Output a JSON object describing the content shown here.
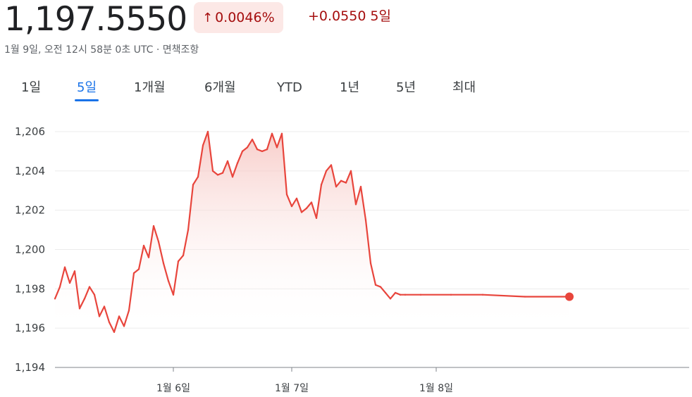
{
  "quote": {
    "price": "1,197.5550",
    "percent_change": "0.0046%",
    "absolute_change": "+0.0550",
    "period": "5일",
    "timestamp_line": "1월 9일, 오전 12시 58분 0초 UTC · 면책조항"
  },
  "tabs": [
    {
      "label": "1일",
      "active": false
    },
    {
      "label": "5일",
      "active": true
    },
    {
      "label": "1개월",
      "active": false
    },
    {
      "label": "6개월",
      "active": false
    },
    {
      "label": "YTD",
      "active": false
    },
    {
      "label": "1년",
      "active": false
    },
    {
      "label": "5년",
      "active": false
    },
    {
      "label": "최대",
      "active": false
    }
  ],
  "colors": {
    "line": "#e8453c",
    "fill_top": "#f6c4c0",
    "grid": "#ebebeb",
    "badge_bg": "#fce8e6",
    "change_text": "#a50e0e",
    "active_tab": "#1a73e8"
  },
  "chart_data": {
    "type": "area",
    "title": "",
    "xlabel": "",
    "ylabel": "",
    "ylim": [
      1194,
      1206
    ],
    "yticks": [
      1194,
      1196,
      1198,
      1200,
      1202,
      1204,
      1206
    ],
    "ytick_labels": [
      "1,194",
      "1,196",
      "1,198",
      "1,200",
      "1,202",
      "1,204",
      "1,206"
    ],
    "xticks": [
      "1월 6일",
      "1월 7일",
      "1월 8일"
    ],
    "series": [
      {
        "name": "",
        "x": [
          "1월 5일 00:00",
          "1월 5일 01:00",
          "1월 5일 02:00",
          "1월 5일 03:00",
          "1월 5일 04:00",
          "1월 5일 05:00",
          "1월 5일 06:00",
          "1월 5일 07:00",
          "1월 5일 08:00",
          "1월 5일 09:00",
          "1월 5일 10:00",
          "1월 5일 11:00",
          "1월 5일 12:00",
          "1월 5일 13:00",
          "1월 5일 14:00",
          "1월 5일 15:00",
          "1월 5일 16:00",
          "1월 5일 17:00",
          "1월 5일 18:00",
          "1월 5일 19:00",
          "1월 5일 20:00",
          "1월 5일 21:00",
          "1월 5일 22:00",
          "1월 5일 23:00",
          "1월 6일 00:00",
          "1월 6일 01:00",
          "1월 6일 02:00",
          "1월 6일 03:00",
          "1월 6일 04:00",
          "1월 6일 05:00",
          "1월 6일 06:00",
          "1월 6일 07:00",
          "1월 6일 08:00",
          "1월 6일 09:00",
          "1월 6일 10:00",
          "1월 6일 11:00",
          "1월 6일 12:00",
          "1월 6일 13:00",
          "1월 6일 14:00",
          "1월 6일 15:00",
          "1월 6일 16:00",
          "1월 6일 17:00",
          "1월 6일 18:00",
          "1월 6일 19:00",
          "1월 6일 20:00",
          "1월 6일 21:00",
          "1월 6일 22:00",
          "1월 6일 23:00",
          "1월 7일 00:00",
          "1월 7일 01:00",
          "1월 7일 02:00",
          "1월 7일 03:00",
          "1월 7일 04:00",
          "1월 7일 05:00",
          "1월 7일 06:00",
          "1월 7일 07:00",
          "1월 7일 08:00",
          "1월 7일 09:00",
          "1월 7일 10:00",
          "1월 7일 11:00",
          "1월 7일 12:00",
          "1월 7일 13:00",
          "1월 7일 14:00",
          "1월 7일 15:00",
          "1월 7일 16:00",
          "1월 7일 17:00",
          "1월 7일 18:00",
          "1월 7일 19:00",
          "1월 7일 20:00",
          "1월 7일 21:00",
          "1월 7일 22:00",
          "1월 7일 23:00",
          "1월 8일 00:00",
          "1월 8일 06:00",
          "1월 8일 12:00",
          "1월 8일 18:00",
          "1월 9일 00:58"
        ],
        "values": [
          1197.5,
          1198.1,
          1199.1,
          1198.3,
          1198.9,
          1197.0,
          1197.5,
          1198.1,
          1197.7,
          1196.6,
          1197.1,
          1196.3,
          1195.8,
          1196.6,
          1196.1,
          1196.9,
          1198.8,
          1199.0,
          1200.2,
          1199.6,
          1201.2,
          1200.4,
          1199.3,
          1198.4,
          1197.7,
          1199.4,
          1199.7,
          1201.0,
          1203.3,
          1203.7,
          1205.3,
          1206.0,
          1204.0,
          1203.8,
          1203.9,
          1204.5,
          1203.7,
          1204.4,
          1205.0,
          1205.2,
          1205.6,
          1205.1,
          1205.0,
          1205.1,
          1205.9,
          1205.2,
          1205.9,
          1202.8,
          1202.2,
          1202.6,
          1201.9,
          1202.1,
          1202.4,
          1201.6,
          1203.3,
          1204.0,
          1204.3,
          1203.2,
          1203.5,
          1203.4,
          1204.0,
          1202.3,
          1203.2,
          1201.5,
          1199.3,
          1198.2,
          1198.1,
          1197.8,
          1197.5,
          1197.8,
          1197.7,
          1197.7,
          1197.7,
          1197.7,
          1197.7,
          1197.6,
          1197.6
        ]
      }
    ],
    "legend": "none",
    "grid": true
  }
}
